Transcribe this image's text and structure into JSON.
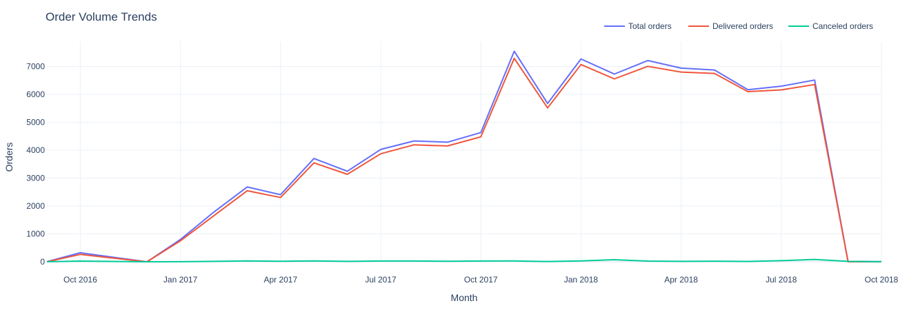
{
  "chart_data": {
    "type": "line",
    "title": "Order Volume Trends",
    "xlabel": "Month",
    "ylabel": "Orders",
    "x": [
      "2016-09",
      "2016-10",
      "2016-11",
      "2016-12",
      "2017-01",
      "2017-02",
      "2017-03",
      "2017-04",
      "2017-05",
      "2017-06",
      "2017-07",
      "2017-08",
      "2017-09",
      "2017-10",
      "2017-11",
      "2017-12",
      "2018-01",
      "2018-02",
      "2018-03",
      "2018-04",
      "2018-05",
      "2018-06",
      "2018-07",
      "2018-08",
      "2018-09",
      "2018-10"
    ],
    "xlim": [
      "2016-09",
      "2018-10"
    ],
    "x_ticks": [
      {
        "value": "2016-10",
        "label": "Oct 2016"
      },
      {
        "value": "2017-01",
        "label": "Jan 2017"
      },
      {
        "value": "2017-04",
        "label": "Apr 2017"
      },
      {
        "value": "2017-07",
        "label": "Jul 2017"
      },
      {
        "value": "2017-10",
        "label": "Oct 2017"
      },
      {
        "value": "2018-01",
        "label": "Jan 2018"
      },
      {
        "value": "2018-04",
        "label": "Apr 2018"
      },
      {
        "value": "2018-07",
        "label": "Jul 2018"
      },
      {
        "value": "2018-10",
        "label": "Oct 2018"
      }
    ],
    "ylim": [
      0,
      7900
    ],
    "y_ticks": [
      0,
      1000,
      2000,
      3000,
      4000,
      5000,
      6000,
      7000
    ],
    "grid": true,
    "legend_position": "top-right",
    "series": [
      {
        "name": "Total orders",
        "color": "#636efa",
        "values": [
          4,
          324,
          160,
          1,
          800,
          1780,
          2682,
          2404,
          3700,
          3245,
          4026,
          4331,
          4285,
          4631,
          7544,
          5673,
          7269,
          6728,
          7211,
          6939,
          6873,
          6167,
          6292,
          6512,
          16,
          4
        ]
      },
      {
        "name": "Delivered orders",
        "color": "#ef553b",
        "values": [
          1,
          265,
          130,
          1,
          750,
          1650,
          2546,
          2303,
          3546,
          3135,
          3872,
          4193,
          4150,
          4478,
          7289,
          5513,
          7069,
          6555,
          7003,
          6798,
          6749,
          6099,
          6159,
          6351,
          0,
          0
        ]
      },
      {
        "name": "Canceled orders",
        "color": "#00cc96",
        "values": [
          2,
          24,
          12,
          0,
          3,
          15,
          33,
          18,
          29,
          16,
          28,
          27,
          20,
          28,
          30,
          10,
          30,
          74,
          25,
          15,
          22,
          12,
          40,
          84,
          15,
          3
        ]
      }
    ]
  }
}
